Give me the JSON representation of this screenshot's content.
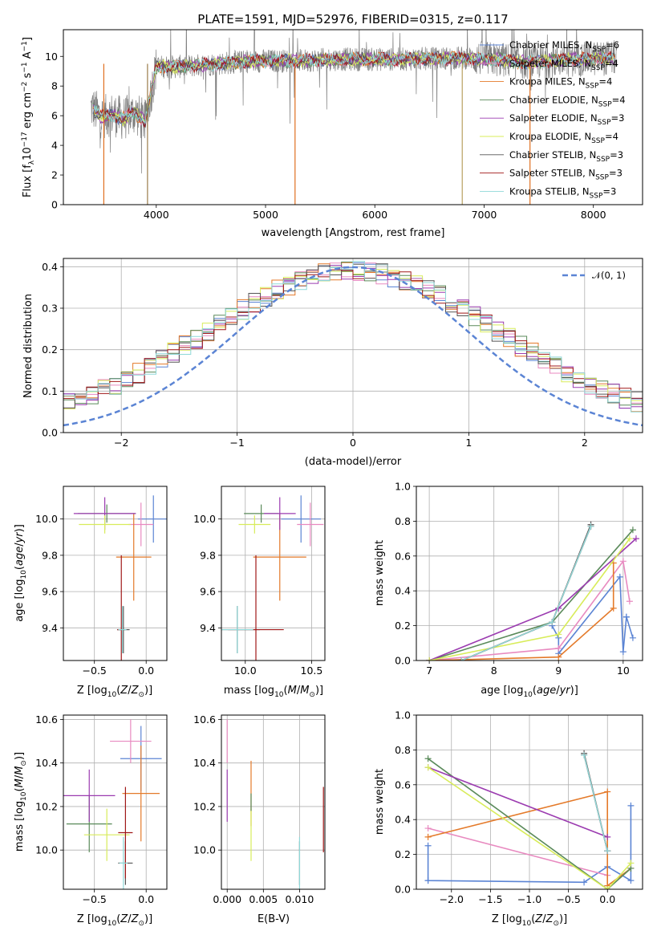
{
  "colors": {
    "chabrier_miles": "#5b84d4",
    "salpeter_miles": "#e88ac0",
    "kroupa_miles": "#e47a2a",
    "chabrier_elodie": "#5a8a5a",
    "salpeter_elodie": "#9b3bb0",
    "kroupa_elodie": "#d8ec5a",
    "chabrier_stelib": "#555555",
    "salpeter_stelib": "#a01818",
    "kroupa_stelib": "#8fd8d8",
    "gauss": "#5b84d4",
    "spectrum_gray": "#808080"
  },
  "chart_data": [
    {
      "id": "spectrum",
      "type": "line",
      "title": "PLATE=1591, MJD=52976, FIBERID=0315, z=0.117",
      "xlabel": "wavelength [Angstrom, rest frame]",
      "ylabel": "Flux [f_λ10^-17 erg cm^-2 s^-1 A^-1]",
      "xlim": [
        3150,
        8450
      ],
      "ylim": [
        0,
        11.8
      ],
      "xticks": [
        4000,
        5000,
        6000,
        7000,
        8000
      ],
      "yticks": [
        0,
        2,
        4,
        6,
        8,
        10
      ],
      "grid": false,
      "legend_position": "top-right",
      "legend": [
        {
          "label": "Chabrier MILES, N_SSP=6",
          "color_key": "chabrier_miles"
        },
        {
          "label": "Salpeter MILES, N_SSP=4",
          "color_key": "salpeter_miles"
        },
        {
          "label": "Kroupa MILES, N_SSP=4",
          "color_key": "kroupa_miles"
        },
        {
          "label": "Chabrier ELODIE, N_SSP=4",
          "color_key": "chabrier_elodie"
        },
        {
          "label": "Salpeter ELODIE, N_SSP=3",
          "color_key": "salpeter_elodie"
        },
        {
          "label": "Kroupa ELODIE, N_SSP=4",
          "color_key": "kroupa_elodie"
        },
        {
          "label": "Chabrier STELIB, N_SSP=3",
          "color_key": "chabrier_stelib"
        },
        {
          "label": "Salpeter STELIB, N_SSP=3",
          "color_key": "salpeter_stelib"
        },
        {
          "label": "Kroupa STELIB, N_SSP=3",
          "color_key": "kroupa_stelib"
        }
      ],
      "continuum": [
        [
          3420,
          6.5
        ],
        [
          3500,
          5.9
        ],
        [
          3600,
          6.1
        ],
        [
          3700,
          5.8
        ],
        [
          3800,
          6.2
        ],
        [
          3900,
          5.6
        ],
        [
          3950,
          7.5
        ],
        [
          4000,
          9.3
        ],
        [
          4200,
          9.3
        ],
        [
          4400,
          9.4
        ],
        [
          4700,
          9.6
        ],
        [
          5000,
          9.7
        ],
        [
          5300,
          9.7
        ],
        [
          5600,
          9.8
        ],
        [
          5900,
          9.8
        ],
        [
          6200,
          9.8
        ],
        [
          6500,
          9.85
        ],
        [
          6800,
          9.9
        ],
        [
          7100,
          9.8
        ],
        [
          7400,
          9.6
        ],
        [
          7800,
          9.8
        ],
        [
          8200,
          9.9
        ]
      ],
      "model_start_x": 3420,
      "data_start_x": 3400,
      "data_end_x": 8220,
      "spikes_down": [
        3520,
        3920,
        5270,
        6800,
        7420
      ]
    },
    {
      "id": "residuals",
      "type": "histogram",
      "xlabel": "(data-model)/error",
      "ylabel": "Normed distribution",
      "xlim": [
        -2.5,
        2.5
      ],
      "ylim": [
        0,
        0.42
      ],
      "xticks": [
        -2,
        -1,
        0,
        1,
        2
      ],
      "yticks": [
        0.0,
        0.1,
        0.2,
        0.3,
        0.4
      ],
      "grid": true,
      "legend_position": "top-right",
      "legend": [
        {
          "label": "𝒩(0, 1)",
          "style": "dashed",
          "color_key": "gauss"
        }
      ],
      "bin_width": 0.1,
      "bin_start": -2.5,
      "gauss": {
        "mean": 0,
        "sigma": 1
      }
    },
    {
      "id": "age_vs_Z",
      "type": "errorbar",
      "xlabel": "Z [log₁₀(Z/Z☉)]",
      "ylabel": "age  [log₁₀(age/yr)]",
      "xlim": [
        -0.8,
        0.2
      ],
      "ylim": [
        9.22,
        10.18
      ],
      "xticks": [
        -0.5,
        0.0
      ],
      "yticks": [
        9.4,
        9.6,
        9.8,
        10.0
      ],
      "grid": true,
      "points": [
        {
          "k": "chabrier_miles",
          "x": 0.07,
          "y": 10.0,
          "xe": 0.15,
          "ye": 0.13
        },
        {
          "k": "salpeter_miles",
          "x": -0.05,
          "y": 9.97,
          "xe": 0.12,
          "ye": 0.12
        },
        {
          "k": "kroupa_miles",
          "x": -0.12,
          "y": 9.79,
          "xe": 0.17,
          "ye": 0.24
        },
        {
          "k": "chabrier_elodie",
          "x": -0.38,
          "y": 10.03,
          "xe": 0.28,
          "ye": 0.05
        },
        {
          "k": "salpeter_elodie",
          "x": -0.4,
          "y": 10.03,
          "xe": 0.3,
          "ye": 0.09
        },
        {
          "k": "kroupa_elodie",
          "x": -0.4,
          "y": 9.97,
          "xe": 0.25,
          "ye": 0.05
        },
        {
          "k": "chabrier_stelib",
          "x": -0.22,
          "y": 9.39,
          "xe": 0.06,
          "ye": 0.13
        },
        {
          "k": "salpeter_stelib",
          "x": -0.24,
          "y": 9.39,
          "xe": 0.04,
          "ye": 0.41
        },
        {
          "k": "kroupa_stelib",
          "x": -0.23,
          "y": 9.39,
          "xe": 0.04,
          "ye": 0.13
        }
      ]
    },
    {
      "id": "age_vs_mass",
      "type": "errorbar",
      "xlabel": "mass [log₁₀(M/M☉)]",
      "ylabel": "",
      "xlim": [
        9.82,
        10.6
      ],
      "ylim": [
        9.22,
        10.18
      ],
      "xticks": [
        10.0,
        10.5
      ],
      "yticks": [
        9.4,
        9.6,
        9.8,
        10.0
      ],
      "grid": true,
      "points": [
        {
          "k": "chabrier_miles",
          "x": 10.42,
          "y": 10.0,
          "xe": 0.15,
          "ye": 0.13
        },
        {
          "k": "salpeter_miles",
          "x": 10.49,
          "y": 9.97,
          "xe": 0.1,
          "ye": 0.12
        },
        {
          "k": "kroupa_miles",
          "x": 10.26,
          "y": 9.79,
          "xe": 0.2,
          "ye": 0.24
        },
        {
          "k": "chabrier_elodie",
          "x": 10.12,
          "y": 10.03,
          "xe": 0.13,
          "ye": 0.05
        },
        {
          "k": "salpeter_elodie",
          "x": 10.26,
          "y": 10.03,
          "xe": 0.12,
          "ye": 0.09
        },
        {
          "k": "kroupa_elodie",
          "x": 10.07,
          "y": 9.97,
          "xe": 0.12,
          "ye": 0.05
        },
        {
          "k": "chabrier_stelib",
          "x": 9.94,
          "y": 9.39,
          "xe": 0.17,
          "ye": 0.13
        },
        {
          "k": "salpeter_stelib",
          "x": 10.08,
          "y": 9.39,
          "xe": 0.21,
          "ye": 0.41
        },
        {
          "k": "kroupa_stelib",
          "x": 9.94,
          "y": 9.39,
          "xe": 0.12,
          "ye": 0.13
        }
      ]
    },
    {
      "id": "mass_weight_vs_age",
      "type": "line",
      "xlabel": "age  [log₁₀(age/yr)]",
      "ylabel": "mass weight",
      "xlim": [
        6.8,
        10.3
      ],
      "ylim": [
        0,
        1.0
      ],
      "xticks": [
        7,
        8,
        9,
        10
      ],
      "yticks": [
        0.0,
        0.2,
        0.4,
        0.6,
        0.8,
        1.0
      ],
      "grid": true,
      "series": [
        {
          "k": "chabrier_miles",
          "x": [
            8.9,
            9.0,
            9.0,
            9.95,
            10.0,
            10.05,
            10.05,
            10.15
          ],
          "y": [
            0.2,
            0.13,
            0.04,
            0.48,
            0.05,
            0.25,
            0.25,
            0.13
          ]
        },
        {
          "k": "salpeter_miles",
          "x": [
            7.0,
            9.0,
            10.0,
            10.1
          ],
          "y": [
            0.0,
            0.07,
            0.57,
            0.34
          ]
        },
        {
          "k": "kroupa_miles",
          "x": [
            7.0,
            9.0,
            9.85,
            9.85
          ],
          "y": [
            0.0,
            0.02,
            0.3,
            0.56
          ]
        },
        {
          "k": "chabrier_elodie",
          "x": [
            7.0,
            8.9,
            10.15
          ],
          "y": [
            0.0,
            0.22,
            0.75
          ]
        },
        {
          "k": "salpeter_elodie",
          "x": [
            7.0,
            9.0,
            10.2
          ],
          "y": [
            0.0,
            0.3,
            0.7
          ]
        },
        {
          "k": "kroupa_elodie",
          "x": [
            7.0,
            9.0,
            10.1
          ],
          "y": [
            0.0,
            0.15,
            0.7
          ]
        },
        {
          "k": "chabrier_stelib",
          "x": [
            7.5,
            8.9,
            9.5
          ],
          "y": [
            0.0,
            0.22,
            0.78
          ]
        },
        {
          "k": "salpeter_stelib",
          "x": [
            7.5,
            8.9,
            9.5
          ],
          "y": [
            0.0,
            0.22,
            0.77
          ]
        },
        {
          "k": "kroupa_stelib",
          "x": [
            7.5,
            8.9,
            9.5
          ],
          "y": [
            0.0,
            0.22,
            0.77
          ]
        }
      ]
    },
    {
      "id": "mass_vs_Z",
      "type": "errorbar",
      "xlabel": "Z [log₁₀(Z/Z☉)]",
      "ylabel": "mass [log₁₀(M/M☉)]",
      "xlim": [
        -0.8,
        0.2
      ],
      "ylim": [
        9.82,
        10.62
      ],
      "xticks": [
        -0.5,
        0.0
      ],
      "yticks": [
        10.0,
        10.2,
        10.4,
        10.6
      ],
      "grid": true,
      "points": [
        {
          "k": "chabrier_miles",
          "x": -0.05,
          "y": 10.42,
          "xe": 0.2,
          "ye": 0.15
        },
        {
          "k": "salpeter_miles",
          "x": -0.15,
          "y": 10.5,
          "xe": 0.2,
          "ye": 0.1
        },
        {
          "k": "kroupa_miles",
          "x": -0.05,
          "y": 10.26,
          "xe": 0.18,
          "ye": 0.22
        },
        {
          "k": "chabrier_elodie",
          "x": -0.55,
          "y": 10.12,
          "xe": 0.22,
          "ye": 0.13
        },
        {
          "k": "salpeter_elodie",
          "x": -0.55,
          "y": 10.25,
          "xe": 0.25,
          "ye": 0.12
        },
        {
          "k": "kroupa_elodie",
          "x": -0.38,
          "y": 10.07,
          "xe": 0.22,
          "ye": 0.12
        },
        {
          "k": "chabrier_stelib",
          "x": -0.2,
          "y": 9.94,
          "xe": 0.07,
          "ye": 0.1
        },
        {
          "k": "salpeter_stelib",
          "x": -0.2,
          "y": 10.08,
          "xe": 0.07,
          "ye": 0.21
        },
        {
          "k": "kroupa_stelib",
          "x": -0.22,
          "y": 9.94,
          "xe": 0.04,
          "ye": 0.12
        }
      ]
    },
    {
      "id": "mass_vs_ebv",
      "type": "errorbar",
      "xlabel": "E(B-V)",
      "ylabel": "",
      "xlim": [
        -0.0008,
        0.0135
      ],
      "ylim": [
        9.82,
        10.62
      ],
      "xticks": [
        0.0,
        0.005,
        0.01
      ],
      "xticklabels": [
        "0.000",
        "0.005",
        "0.010"
      ],
      "yticks": [
        10.0,
        10.2,
        10.4,
        10.6
      ],
      "grid": true,
      "points": [
        {
          "k": "salpeter_miles",
          "x": 0.0,
          "y": 10.5,
          "xe": 0,
          "ye": 0.1
        },
        {
          "k": "salpeter_elodie",
          "x": 0.0,
          "y": 10.25,
          "xe": 0,
          "ye": 0.12
        },
        {
          "k": "kroupa_miles",
          "x": 0.0033,
          "y": 10.26,
          "xe": 0,
          "ye": 0.15
        },
        {
          "k": "kroupa_elodie",
          "x": 0.0033,
          "y": 10.07,
          "xe": 0,
          "ye": 0.12
        },
        {
          "k": "chabrier_elodie",
          "x": 0.0033,
          "y": 10.22,
          "xe": 0,
          "ye": 0.04
        },
        {
          "k": "chabrier_stelib",
          "x": 0.01,
          "y": 9.94,
          "xe": 0,
          "ye": 0.1
        },
        {
          "k": "kroupa_stelib",
          "x": 0.01,
          "y": 9.94,
          "xe": 0,
          "ye": 0.12
        },
        {
          "k": "salpeter_stelib",
          "x": 0.0133,
          "y": 10.14,
          "xe": 0,
          "ye": 0.15
        }
      ]
    },
    {
      "id": "mass_weight_vs_Z",
      "type": "line",
      "xlabel": "Z [log₁₀(Z/Z☉)]",
      "ylabel": "mass weight",
      "xlim": [
        -2.45,
        0.45
      ],
      "ylim": [
        0,
        1.0
      ],
      "xticks": [
        -2.0,
        -1.5,
        -1.0,
        -0.5,
        0.0
      ],
      "yticks": [
        0.0,
        0.2,
        0.4,
        0.6,
        0.8,
        1.0
      ],
      "grid": true,
      "series": [
        {
          "k": "chabrier_miles",
          "x": [
            -2.3,
            -2.3,
            -2.3,
            -0.3,
            0.0,
            0.3,
            0.3
          ],
          "y": [
            0.25,
            0.05,
            0.05,
            0.04,
            0.13,
            0.05,
            0.48
          ]
        },
        {
          "k": "salpeter_miles",
          "x": [
            -2.3,
            0.0
          ],
          "y": [
            0.35,
            0.08
          ]
        },
        {
          "k": "kroupa_miles",
          "x": [
            -2.3,
            0.0,
            0.0,
            0.3
          ],
          "y": [
            0.3,
            0.56,
            0.02,
            0.12
          ]
        },
        {
          "k": "chabrier_elodie",
          "x": [
            -2.3,
            0.0,
            0.3
          ],
          "y": [
            0.75,
            0.0,
            0.12
          ]
        },
        {
          "k": "salpeter_elodie",
          "x": [
            -2.3,
            0.0
          ],
          "y": [
            0.7,
            0.3
          ]
        },
        {
          "k": "kroupa_elodie",
          "x": [
            -2.3,
            0.0,
            0.3
          ],
          "y": [
            0.7,
            0.0,
            0.15
          ]
        },
        {
          "k": "chabrier_stelib",
          "x": [
            -0.3,
            0.0
          ],
          "y": [
            0.78,
            0.22
          ]
        },
        {
          "k": "salpeter_stelib",
          "x": [
            -0.3,
            0.0
          ],
          "y": [
            0.77,
            0.22
          ]
        },
        {
          "k": "kroupa_stelib",
          "x": [
            -0.3,
            0.0
          ],
          "y": [
            0.77,
            0.22
          ]
        }
      ]
    }
  ]
}
